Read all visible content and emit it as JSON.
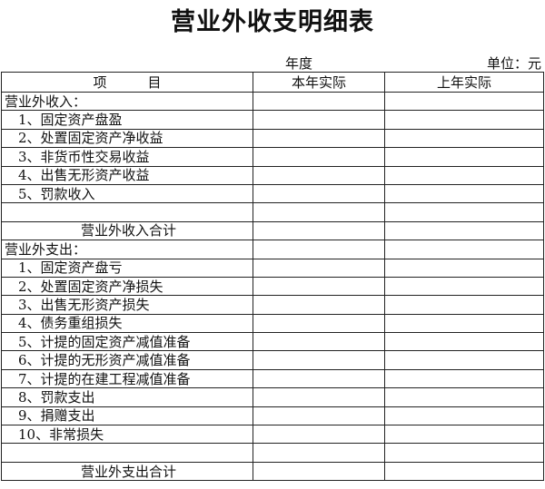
{
  "title": "营业外收支明细表",
  "year_label": "年度",
  "unit_label": "单位：元",
  "headers": [
    "项　　　目",
    "本年实际",
    "上年实际"
  ],
  "rows": [
    {
      "label": "营业外收入：",
      "type": "section"
    },
    {
      "label": "1、固定资产盘盈",
      "type": "item"
    },
    {
      "label": "2、处置固定资产净收益",
      "type": "item"
    },
    {
      "label": "3、非货币性交易收益",
      "type": "item"
    },
    {
      "label": "4、出售无形资产收益",
      "type": "item"
    },
    {
      "label": "5、罚款收入",
      "type": "item"
    },
    {
      "label": "",
      "type": "blank"
    },
    {
      "label": "营业外收入合计",
      "type": "total"
    },
    {
      "label": "营业外支出：",
      "type": "section"
    },
    {
      "label": "1、固定资产盘亏",
      "type": "item"
    },
    {
      "label": "2、处置固定资产净损失",
      "type": "item"
    },
    {
      "label": "3、出售无形资产损失",
      "type": "item"
    },
    {
      "label": "4、债务重组损失",
      "type": "item"
    },
    {
      "label": "5、计提的固定资产减值准备",
      "type": "item"
    },
    {
      "label": "6、计提的无形资产减值准备",
      "type": "item"
    },
    {
      "label": "7、计提的在建工程减值准备",
      "type": "item"
    },
    {
      "label": "8、罚款支出",
      "type": "item"
    },
    {
      "label": "9、捐赠支出",
      "type": "item"
    },
    {
      "label": "10、非常损失",
      "type": "item"
    },
    {
      "label": "",
      "type": "blank"
    },
    {
      "label": "营业外支出合计",
      "type": "total"
    }
  ]
}
